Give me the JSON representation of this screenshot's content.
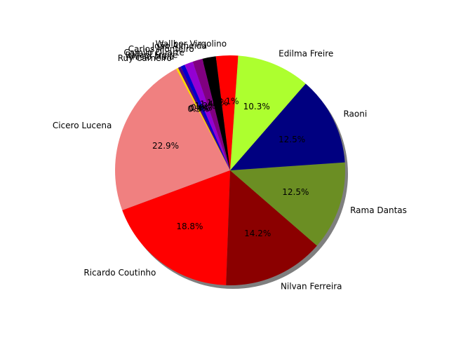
{
  "chart_data": {
    "type": "pie",
    "title": "",
    "shadow": true,
    "start_angle_deg": 118,
    "direction": "counterclockwise",
    "slices": [
      {
        "label": "Cicero Lucena",
        "value": 22.9,
        "pct_label": "22.9%",
        "color": "#f08080"
      },
      {
        "label": "Ricardo Coutinho",
        "value": 18.8,
        "pct_label": "18.8%",
        "color": "#ff0000"
      },
      {
        "label": "Nilvan Ferreira",
        "value": 14.2,
        "pct_label": "14.2%",
        "color": "#8b0000"
      },
      {
        "label": "Rama Dantas",
        "value": 12.5,
        "pct_label": "12.5%",
        "color": "#6b8e23"
      },
      {
        "label": "Raoni",
        "value": 12.5,
        "pct_label": "12.5%",
        "color": "#000080"
      },
      {
        "label": "Edilma Freire",
        "value": 10.3,
        "pct_label": "10.3%",
        "color": "#adff2f"
      },
      {
        "label": "Wallber Virgolino",
        "value": 3.1,
        "pct_label": "3.1%",
        "color": "#ff0000"
      },
      {
        "label": "João Almeida",
        "value": 1.9,
        "pct_label": "1.9%",
        "color": "#000000"
      },
      {
        "label": "Carlos Monteiro",
        "value": 1.4,
        "pct_label": "1.4%",
        "color": "#800080"
      },
      {
        "label": "Camilo Duarte",
        "value": 1.2,
        "pct_label": "1.2%",
        "color": "#9400d3"
      },
      {
        "label": "Rafael Freire",
        "value": 0.6,
        "pct_label": "0.6%",
        "color": "#0000cd"
      },
      {
        "label": "Anísio Maia",
        "value": 0.4,
        "pct_label": "0.4%",
        "color": "#4b0082"
      },
      {
        "label": "Ruy Carneiro",
        "value": 0.3,
        "pct_label": "0.3%",
        "color": "#ffd700"
      }
    ]
  }
}
